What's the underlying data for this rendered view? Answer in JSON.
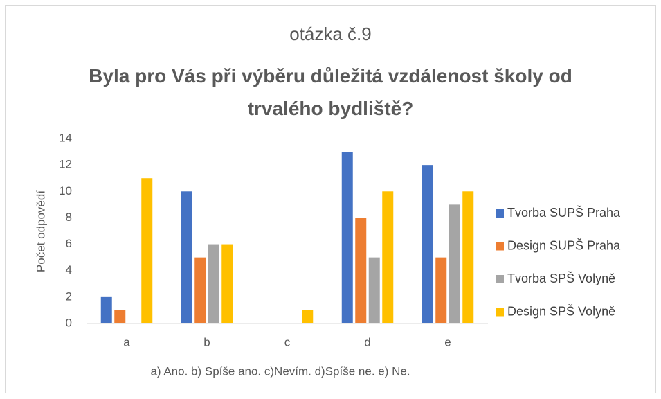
{
  "chart_data": {
    "type": "bar",
    "title": "otázka č.9",
    "subtitle": "Byla pro Vás při výběru důležitá vzdálenost školy od trvalého bydliště?",
    "y_label": "Počet odpovědí",
    "x_label": "a) Ano. b) Spíše ano. c)Nevím. d)Spíše ne. e) Ne.",
    "categories": [
      "a",
      "b",
      "c",
      "d",
      "e"
    ],
    "series": [
      {
        "name": "Tvorba SUPŠ Praha",
        "color": "#4472c4",
        "values": [
          2,
          10,
          0,
          13,
          12
        ]
      },
      {
        "name": "Design SUPŠ Praha",
        "color": "#ed7d31",
        "values": [
          1,
          5,
          0,
          8,
          5
        ]
      },
      {
        "name": "Tvorba SPŠ Volyně",
        "color": "#a5a5a5",
        "values": [
          0,
          6,
          0,
          5,
          9
        ]
      },
      {
        "name": "Design SPŠ Volyně",
        "color": "#ffc000",
        "values": [
          11,
          6,
          1,
          10,
          10
        ]
      }
    ],
    "ylim": [
      0,
      14
    ],
    "yticks": [
      0,
      2,
      4,
      6,
      8,
      10,
      12,
      14
    ],
    "grid": false,
    "legend": "right"
  }
}
